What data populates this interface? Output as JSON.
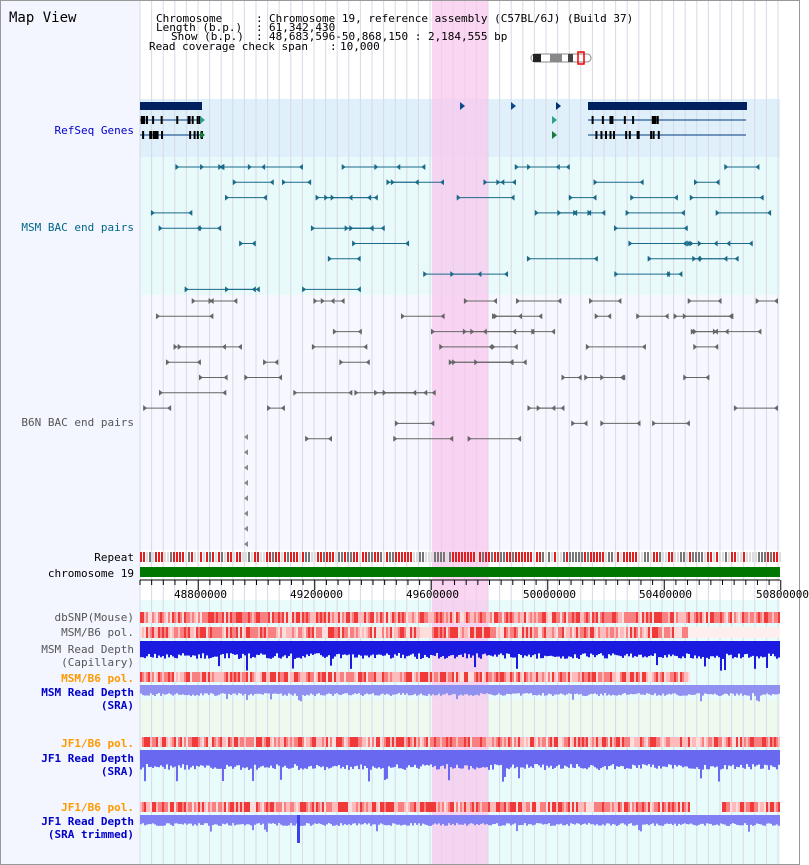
{
  "title": "Map View",
  "header": {
    "chromosome_label": "Chromosome",
    "chromosome_value": "Chromosome 19, reference assembly (C57BL/6J) (Build 37)",
    "length_label": "Length (b.p.)",
    "length_value": "61,342,430",
    "show_label": "Show (b.p.)",
    "show_value": "48,683,596-50,868,150 : 2,184,555 bp",
    "coverage_label": "Read coverage check span",
    "coverage_value": "10,000",
    "separator": ":"
  },
  "tracks": {
    "refseq": "RefSeq Genes",
    "msm_bac": "MSM BAC end pairs",
    "b6n_bac": "B6N BAC end pairs",
    "repeat": "Repeat",
    "chromosome": "chromosome 19",
    "dbsnp": "dbSNP(Mouse)",
    "msm_b6_pol_1": "MSM/B6 pol.",
    "msm_depth_cap_1": "MSM Read Depth",
    "msm_depth_cap_2": "(Capillary)",
    "msm_b6_pol_2": "MSM/B6 pol.",
    "msm_depth_sra_1": "MSM Read Depth",
    "msm_depth_sra_2": "(SRA)",
    "jf1_b6_pol_1": "JF1/B6 pol.",
    "jf1_depth_sra_1": "JF1 Read Depth",
    "jf1_depth_sra_2": "(SRA)",
    "jf1_b6_pol_2": "JF1/B6 pol.",
    "jf1_depth_trim_1": "JF1 Read Depth",
    "jf1_depth_trim_2": "(SRA trimmed)"
  },
  "axis": {
    "ticks": [
      "48800000",
      "49200000",
      "49600000",
      "50000000",
      "50400000",
      "50800000"
    ]
  },
  "colors": {
    "refseq_label": "#0000cc",
    "msm_label": "#006688",
    "b6n_label": "#555555",
    "pol_orange": "#ff9900",
    "depth_blue": "#0000cc",
    "highlight": "#f8c8ee",
    "chrom_green": "#007700"
  }
}
